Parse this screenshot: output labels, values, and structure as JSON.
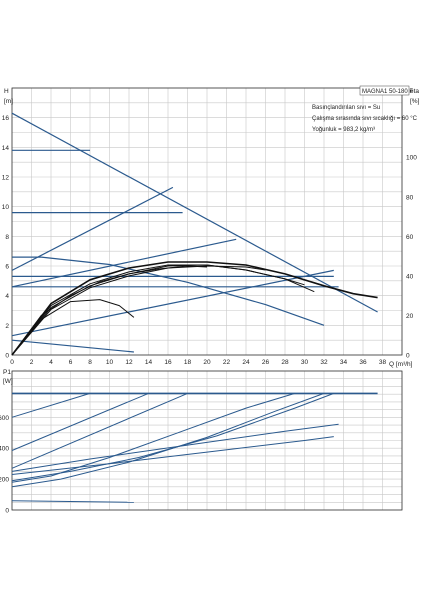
{
  "chart_data": [
    {
      "type": "line",
      "title": "MAGNA1 50-180 F",
      "annotations": [
        "Basınçlandırılan sıvı = Su",
        "Çalışma sırasında sıvı sıcaklığı = 60 °C",
        "Yoğunluk = 983,2 kg/m³"
      ],
      "xlabel": "Q [m³/h]",
      "ylabel": "H [m]",
      "y2label": "eta [%]",
      "xlim": [
        0,
        40
      ],
      "ylim": [
        0,
        18
      ],
      "y2lim": [
        0,
        135
      ],
      "xticks": [
        "0",
        "2",
        "4",
        "6",
        "8",
        "10",
        "12",
        "14",
        "16",
        "18",
        "20",
        "22",
        "24",
        "26",
        "28",
        "30",
        "32",
        "34",
        "36",
        "38"
      ],
      "yticks": [
        "0",
        "2",
        "4",
        "6",
        "8",
        "10",
        "12",
        "14",
        "16"
      ],
      "y2ticks": [
        "0",
        "20",
        "40",
        "60",
        "80",
        "100"
      ],
      "grid": true,
      "series_head": [
        {
          "x": [
            0,
            37.5
          ],
          "y": [
            16.3,
            2.9
          ]
        },
        {
          "x": [
            0,
            8
          ],
          "y": [
            13.8,
            13.8
          ]
        },
        {
          "x": [
            0,
            17.5
          ],
          "y": [
            9.6,
            9.6
          ]
        },
        {
          "x": [
            0,
            33
          ],
          "y": [
            5.3,
            5.3
          ]
        },
        {
          "x": [
            0,
            33.5
          ],
          "y": [
            4.6,
            4.6
          ]
        },
        {
          "x": [
            0,
            33
          ],
          "y": [
            1.3,
            5.7
          ]
        },
        {
          "x": [
            0,
            16.5
          ],
          "y": [
            5.7,
            11.3
          ]
        },
        {
          "x": [
            0,
            23
          ],
          "y": [
            4.6,
            7.8
          ]
        },
        {
          "x": [
            0,
            3,
            10,
            18,
            26,
            32
          ],
          "y": [
            6.6,
            6.6,
            6.1,
            4.9,
            3.4,
            2.0
          ]
        },
        {
          "x": [
            0,
            12.5
          ],
          "y": [
            1.0,
            0.2
          ]
        }
      ],
      "series_eta": [
        {
          "x": [
            0,
            4,
            8,
            12,
            16,
            20,
            24,
            28,
            32,
            35,
            37.5
          ],
          "y": [
            0,
            26,
            38,
            44,
            47,
            47,
            45.5,
            41,
            35,
            31,
            29
          ]
        },
        {
          "x": [
            0,
            4,
            8,
            12,
            16,
            20,
            24,
            28,
            31
          ],
          "y": [
            0,
            25,
            36,
            42,
            45.5,
            45.5,
            43,
            38.5,
            32
          ]
        },
        {
          "x": [
            0,
            4,
            8,
            12,
            16,
            20,
            24,
            28,
            30
          ],
          "y": [
            0,
            24,
            35,
            41,
            45,
            45.5,
            43,
            38.5,
            35.5
          ]
        },
        {
          "x": [
            0,
            4,
            8,
            12,
            16,
            20,
            24,
            26
          ],
          "y": [
            0,
            23,
            34,
            40,
            44,
            45,
            44.5,
            43
          ]
        },
        {
          "x": [
            0,
            3,
            6,
            9,
            12,
            15,
            18,
            20
          ],
          "y": [
            0,
            20,
            30,
            37,
            41,
            43.5,
            45,
            44.5
          ]
        },
        {
          "x": [
            0,
            3,
            6,
            9,
            11,
            12.5
          ],
          "y": [
            0,
            18,
            27,
            28,
            25,
            19
          ]
        }
      ]
    },
    {
      "type": "line",
      "xlabel": "",
      "ylabel": "P1 [W]",
      "xlim": [
        0,
        40
      ],
      "ylim": [
        0,
        900
      ],
      "yticks": [
        "0",
        "200",
        "400",
        "600"
      ],
      "grid": true,
      "series": [
        {
          "x": [
            0,
            37.5
          ],
          "y": [
            755,
            755
          ]
        },
        {
          "x": [
            0,
            8
          ],
          "y": [
            600,
            755
          ]
        },
        {
          "x": [
            0,
            14
          ],
          "y": [
            385,
            755
          ]
        },
        {
          "x": [
            0,
            18
          ],
          "y": [
            270,
            755
          ]
        },
        {
          "x": [
            0,
            4,
            10,
            17,
            24,
            29
          ],
          "y": [
            180,
            220,
            340,
            500,
            660,
            755
          ]
        },
        {
          "x": [
            0,
            5,
            12,
            20,
            27,
            32
          ],
          "y": [
            150,
            200,
            310,
            470,
            640,
            755
          ]
        },
        {
          "x": [
            0,
            6,
            13,
            21,
            29,
            33
          ],
          "y": [
            190,
            250,
            340,
            480,
            660,
            755
          ]
        },
        {
          "x": [
            0,
            8,
            18,
            28,
            33.5
          ],
          "y": [
            250,
            330,
            420,
            510,
            555
          ]
        },
        {
          "x": [
            0,
            10,
            20,
            30,
            33
          ],
          "y": [
            230,
            300,
            375,
            450,
            475
          ]
        },
        {
          "x": [
            0,
            12.5
          ],
          "y": [
            60,
            50
          ]
        }
      ]
    }
  ]
}
